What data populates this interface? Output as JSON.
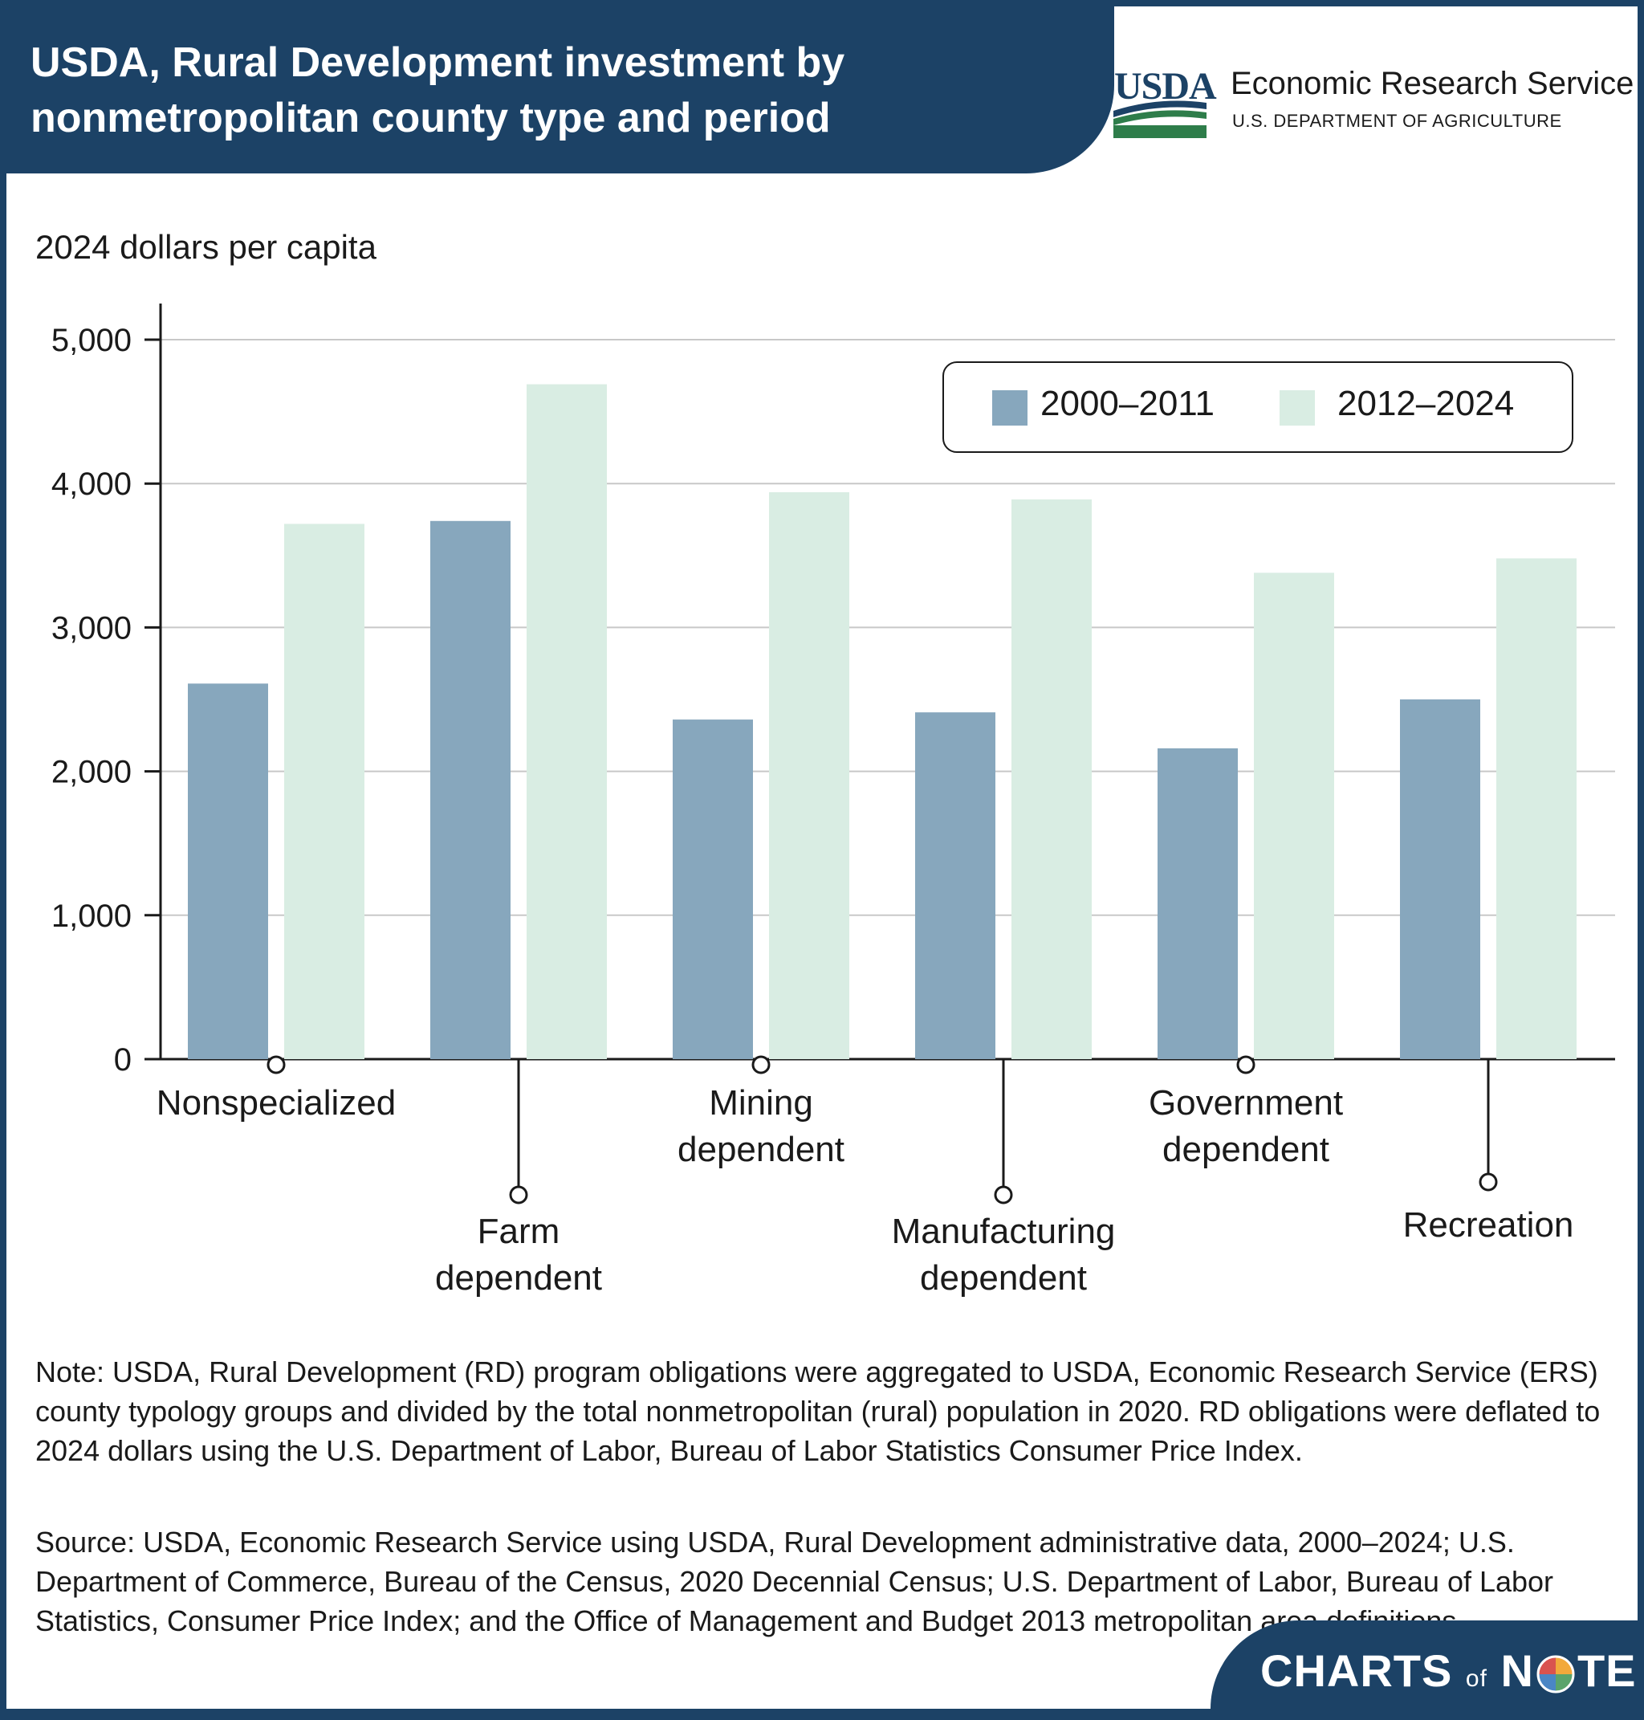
{
  "header": {
    "title": "USDA, Rural Development investment by nonmetropolitan county type and period",
    "logo_text": "USDA",
    "org_name": "Economic Research Service",
    "org_dept": "U.S. DEPARTMENT OF AGRICULTURE"
  },
  "colors": {
    "header_bg": "#1c4266",
    "series_2000_2011": "#87a7bd",
    "series_2012_2024": "#d9ede3"
  },
  "chart_data": {
    "type": "bar",
    "title": "USDA, Rural Development investment by nonmetropolitan county type and period",
    "ylabel": "2024 dollars per capita",
    "xlabel": "",
    "ylim": [
      0,
      5000
    ],
    "yticks": [
      "0",
      "1,000",
      "2,000",
      "3,000",
      "4,000",
      "5,000"
    ],
    "ytick_values": [
      0,
      1000,
      2000,
      3000,
      4000,
      5000
    ],
    "grid": true,
    "legend_position": "top-right",
    "categories": [
      "Nonspecialized",
      "Farm dependent",
      "Mining dependent",
      "Manufacturing dependent",
      "Government dependent",
      "Recreation"
    ],
    "category_lines": [
      [
        "Nonspecialized"
      ],
      [
        "Farm",
        "dependent"
      ],
      [
        "Mining",
        "dependent"
      ],
      [
        "Manufacturing",
        "dependent"
      ],
      [
        "Government",
        "dependent"
      ],
      [
        "Recreation"
      ]
    ],
    "series": [
      {
        "name": "2000–2011",
        "values": [
          2610,
          3740,
          2360,
          2410,
          2160,
          2500
        ]
      },
      {
        "name": "2012–2024",
        "values": [
          3720,
          4690,
          3940,
          3890,
          3380,
          3480
        ]
      }
    ]
  },
  "notes": {
    "note": "Note: USDA, Rural Development (RD) program obligations were aggregated to USDA, Economic Research Service (ERS) county typology groups and divided by the total nonmetropolitan (rural) population in 2020. RD obligations were deflated to 2024 dollars using the U.S. Department of Labor, Bureau of Labor Statistics Consumer Price Index.",
    "source": "Source: USDA, Economic Research Service using USDA, Rural Development administrative data, 2000–2024; U.S. Department of Commerce, Bureau of the Census, 2020 Decennial Census; U.S. Department of Labor, Bureau of Labor Statistics, Consumer Price Index; and the Office of Management and Budget 2013 metropolitan area definitions."
  },
  "footer": {
    "brand_left": "CHARTS",
    "brand_mid": "of",
    "brand_n": "N",
    "brand_right": "TE"
  }
}
